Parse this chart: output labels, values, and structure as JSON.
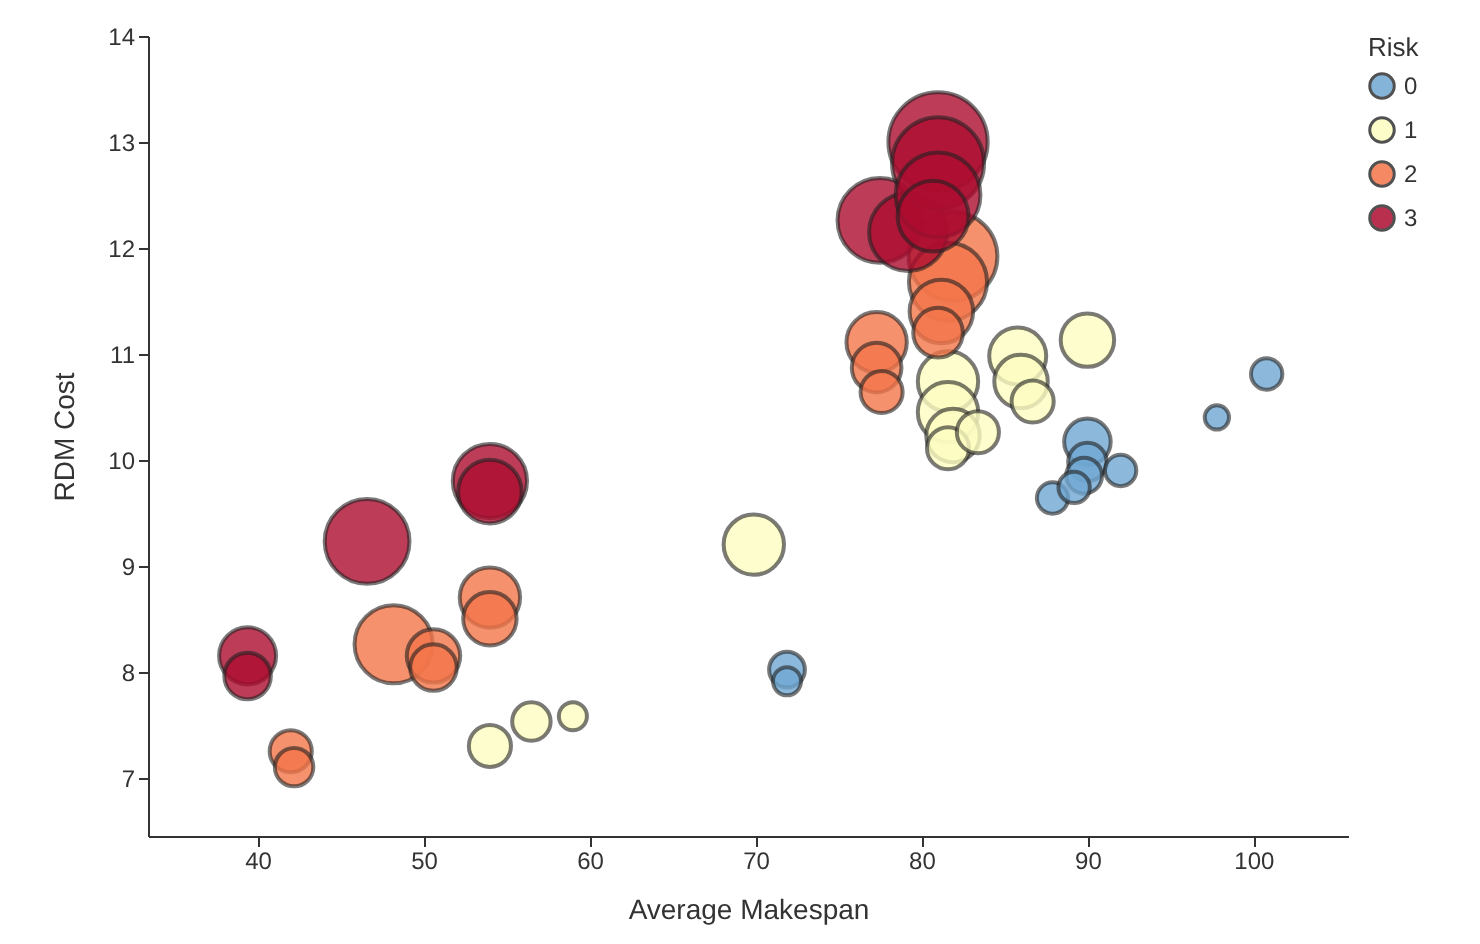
{
  "chart_data": {
    "type": "bubble",
    "xlabel": "Average Makespan",
    "ylabel": "RDM Cost",
    "legend_title": "Risk",
    "xlim": [
      33.4,
      105.7
    ],
    "ylim": [
      6.45,
      14
    ],
    "xticks": [
      40,
      50,
      60,
      70,
      80,
      90,
      100
    ],
    "yticks": [
      7,
      8,
      9,
      10,
      11,
      12,
      13,
      14
    ],
    "grid": false,
    "legend": "top right",
    "marker": "circle",
    "series": [
      {
        "name": "0",
        "color": "#6fa8d2",
        "x": [
          71.9,
          71.9,
          97.8,
          100.8,
          90.0,
          90.0,
          89.8,
          87.9,
          89.2,
          92.0
        ],
        "values": [
          8.02,
          7.91,
          10.4,
          10.81,
          10.17,
          9.98,
          9.85,
          9.64,
          9.74,
          9.9
        ],
        "sizes": [
          0.13,
          0.08,
          0.06,
          0.1,
          0.22,
          0.15,
          0.13,
          0.1,
          0.1,
          0.1
        ]
      },
      {
        "name": "1",
        "color": "#fdfdc0",
        "x": [
          54.0,
          56.5,
          59.0,
          69.9,
          90.0,
          85.8,
          86.0,
          86.7,
          81.6,
          81.6,
          81.9,
          81.6,
          83.4
        ],
        "values": [
          7.3,
          7.53,
          7.58,
          9.2,
          11.13,
          10.98,
          10.74,
          10.55,
          10.74,
          10.45,
          10.23,
          10.11,
          10.26
        ],
        "sizes": [
          0.18,
          0.15,
          0.08,
          0.37,
          0.29,
          0.33,
          0.29,
          0.18,
          0.37,
          0.37,
          0.29,
          0.18,
          0.18
        ]
      },
      {
        "name": "2",
        "color": "#f4754a",
        "x": [
          42.0,
          42.2,
          48.2,
          50.6,
          50.6,
          54.0,
          54.0,
          77.3,
          77.3,
          77.6,
          81.9,
          81.6,
          81.2,
          81.0
        ],
        "values": [
          7.25,
          7.1,
          8.26,
          8.15,
          8.04,
          8.7,
          8.5,
          11.11,
          10.87,
          10.64,
          11.92,
          11.68,
          11.4,
          11.2
        ],
        "sizes": [
          0.18,
          0.15,
          0.62,
          0.29,
          0.22,
          0.37,
          0.29,
          0.37,
          0.25,
          0.18,
          0.8,
          0.62,
          0.41,
          0.25
        ]
      },
      {
        "name": "3",
        "color": "#ad0d30",
        "x": [
          39.4,
          39.4,
          46.6,
          54.0,
          54.0,
          77.5,
          79.2,
          81.0,
          81.0,
          81.0,
          80.7
        ],
        "values": [
          8.15,
          7.96,
          9.23,
          9.8,
          9.7,
          12.26,
          12.15,
          13.0,
          12.8,
          12.5,
          12.3
        ],
        "sizes": [
          0.33,
          0.22,
          0.73,
          0.56,
          0.41,
          0.73,
          0.62,
          1,
          0.86,
          0.73,
          0.51
        ]
      }
    ]
  }
}
